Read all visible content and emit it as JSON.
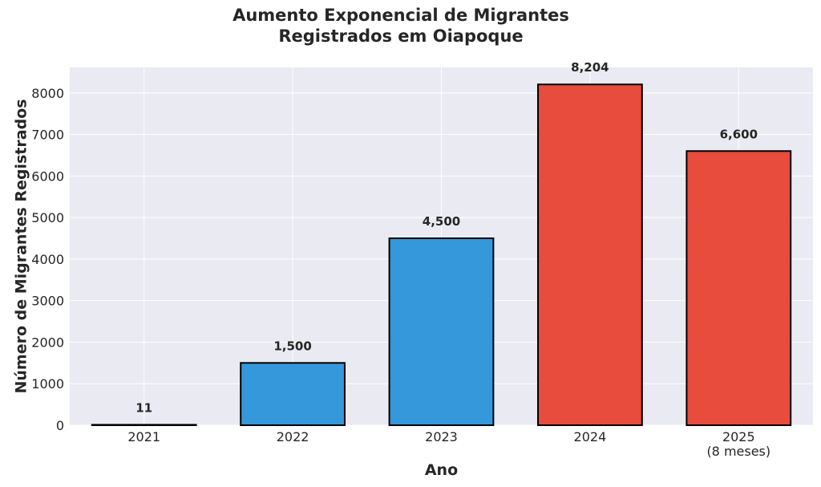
{
  "chart_data": {
    "type": "bar",
    "title_lines": [
      "Aumento Exponencial de Migrantes",
      "Registrados em Oiapoque"
    ],
    "xlabel": "Ano",
    "ylabel": "Número de Migrantes Registrados",
    "categories": [
      {
        "label": "2021",
        "sublabel": ""
      },
      {
        "label": "2022",
        "sublabel": ""
      },
      {
        "label": "2023",
        "sublabel": ""
      },
      {
        "label": "2024",
        "sublabel": ""
      },
      {
        "label": "2025",
        "sublabel": "(8 meses)"
      }
    ],
    "values": [
      11,
      1500,
      4500,
      8204,
      6600
    ],
    "value_labels": [
      "11",
      "1,500",
      "4,500",
      "8,204",
      "6,600"
    ],
    "bar_colors": [
      "#3498db",
      "#3498db",
      "#3498db",
      "#e74c3c",
      "#e74c3c"
    ],
    "ylim": [
      0,
      8614
    ],
    "yticks": [
      0,
      1000,
      2000,
      3000,
      4000,
      5000,
      6000,
      7000,
      8000
    ],
    "grid": true,
    "plot_background": "#eaeaf2",
    "edge_color": "#000000"
  }
}
